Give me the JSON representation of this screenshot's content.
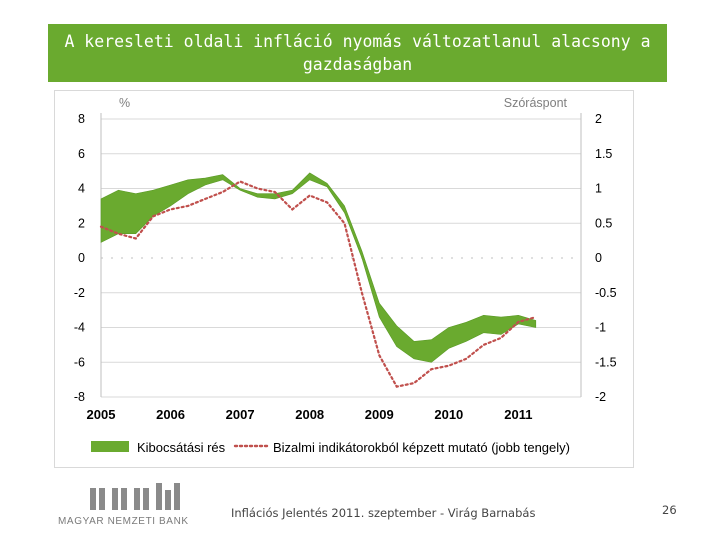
{
  "title": "A keresleti oldali infláció nyomás változatlanul alacsony a gazdaságban",
  "chart_data": {
    "type": "area",
    "left_unit": "%",
    "right_unit": "Szóráspont",
    "x_ticks": [
      "2005",
      "2006",
      "2007",
      "2008",
      "2009",
      "2010",
      "2011"
    ],
    "y_left_ticks": [
      "8",
      "6",
      "4",
      "2",
      "0",
      "-2",
      "-4",
      "-6",
      "-8"
    ],
    "y_right_ticks": [
      "2",
      "1.5",
      "1",
      "0.5",
      "0",
      "-0.5",
      "-1",
      "-1.5",
      "-2"
    ],
    "ylim_left": [
      -8,
      8
    ],
    "ylim_right": [
      -2,
      2
    ],
    "grid": "horizontal",
    "legend_position": "bottom",
    "x": [
      2005.0,
      2005.25,
      2005.5,
      2005.75,
      2006.0,
      2006.25,
      2006.5,
      2006.75,
      2007.0,
      2007.25,
      2007.5,
      2007.75,
      2008.0,
      2008.25,
      2008.5,
      2008.75,
      2009.0,
      2009.25,
      2009.5,
      2009.75,
      2010.0,
      2010.25,
      2010.5,
      2010.75,
      2011.0,
      2011.25
    ],
    "band_upper": [
      3.4,
      3.9,
      3.7,
      3.9,
      4.2,
      4.5,
      4.6,
      4.8,
      4.0,
      3.7,
      3.7,
      3.9,
      4.9,
      4.3,
      3.0,
      0.4,
      -2.6,
      -3.9,
      -4.8,
      -4.7,
      -4.0,
      -3.7,
      -3.3,
      -3.4,
      -3.3,
      -3.6
    ],
    "band_lower": [
      0.9,
      1.4,
      1.4,
      2.4,
      3.0,
      3.7,
      4.2,
      4.5,
      3.9,
      3.5,
      3.4,
      3.7,
      4.5,
      4.1,
      2.6,
      0.0,
      -3.4,
      -5.1,
      -5.8,
      -6.0,
      -5.2,
      -4.8,
      -4.3,
      -4.4,
      -3.8,
      -4.0
    ],
    "series": [
      {
        "name": "Kibocsátási rés",
        "color": "#6aaa2f",
        "style": "band"
      },
      {
        "name": "Bizalmi indikátorokból képzett mutató (jobb tengely)",
        "color": "#c0504d",
        "style": "dotted",
        "axis": "right",
        "values": [
          0.45,
          0.35,
          0.28,
          0.6,
          0.7,
          0.75,
          0.85,
          0.95,
          1.1,
          1.0,
          0.95,
          0.7,
          0.9,
          0.8,
          0.5,
          -0.5,
          -1.4,
          -1.85,
          -1.8,
          -1.6,
          -1.55,
          -1.45,
          -1.25,
          -1.15,
          -0.92,
          -0.85
        ]
      }
    ]
  },
  "footer": {
    "bank_name": "MAGYAR NEMZETI BANK",
    "text": "Inflációs Jelentés 2011. szeptember - Virág Barnabás",
    "page_number": "26"
  },
  "colors": {
    "title_background": "#6aaa2f",
    "band_fill": "#6aaa2f",
    "dotted_line": "#c0504d",
    "grid": "#d9d9d9"
  }
}
